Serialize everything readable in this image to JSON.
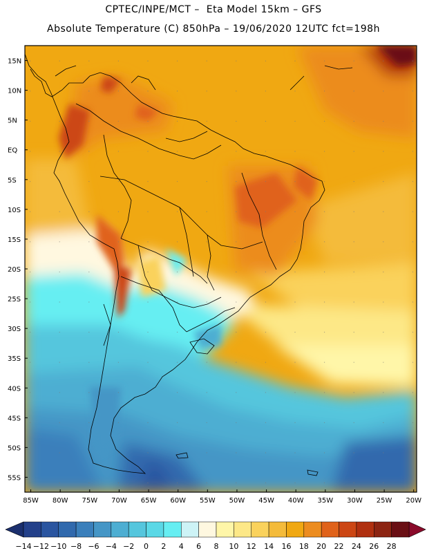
{
  "header": {
    "line1": "CPTEC/INPE/MCT –  Eta Model 15km – GFS",
    "line2": "Absolute Temperature (C) 850hPa – 19/06/2020 12UTC fct=198h"
  },
  "map": {
    "lat_labels": [
      "15N",
      "10N",
      "5N",
      "EQ",
      "5S",
      "10S",
      "15S",
      "20S",
      "25S",
      "30S",
      "35S",
      "40S",
      "45S",
      "50S",
      "55S"
    ],
    "lon_labels": [
      "85W",
      "80W",
      "75W",
      "70W",
      "65W",
      "60W",
      "55W",
      "50W",
      "45W",
      "40W",
      "35W",
      "30W",
      "25W",
      "20W"
    ],
    "lat_values": [
      15,
      10,
      5,
      0,
      -5,
      -10,
      -15,
      -20,
      -25,
      -30,
      -35,
      -40,
      -45,
      -50,
      -55
    ],
    "lon_values": [
      -85,
      -80,
      -75,
      -70,
      -65,
      -60,
      -55,
      -50,
      -45,
      -40,
      -35,
      -30,
      -25,
      -20
    ],
    "lon_range": [
      -86,
      -19.5
    ],
    "lat_range": [
      17.5,
      -57.5
    ]
  },
  "colorbar": {
    "labels": [
      "-14",
      "-12",
      "-10",
      "-8",
      "-6",
      "-4",
      "-2",
      "0",
      "2",
      "4",
      "6",
      "8",
      "10",
      "12",
      "14",
      "16",
      "18",
      "20",
      "22",
      "24",
      "26",
      "28"
    ],
    "colors": [
      "#23408a",
      "#2a55a0",
      "#3069ad",
      "#3a7fbb",
      "#4596c6",
      "#4daed2",
      "#55c6dd",
      "#5ad8e6",
      "#66eef2",
      "#cdf3f6",
      "#fff8e0",
      "#fff6a8",
      "#fde887",
      "#fad25c",
      "#f4bb3a",
      "#f0a812",
      "#ec8c1f",
      "#e0621a",
      "#cc4614",
      "#b03010",
      "#8c2412",
      "#6a0f14"
    ],
    "left_arrow_color": "#1b2f6e",
    "right_arrow_color": "#8a0a2a"
  }
}
